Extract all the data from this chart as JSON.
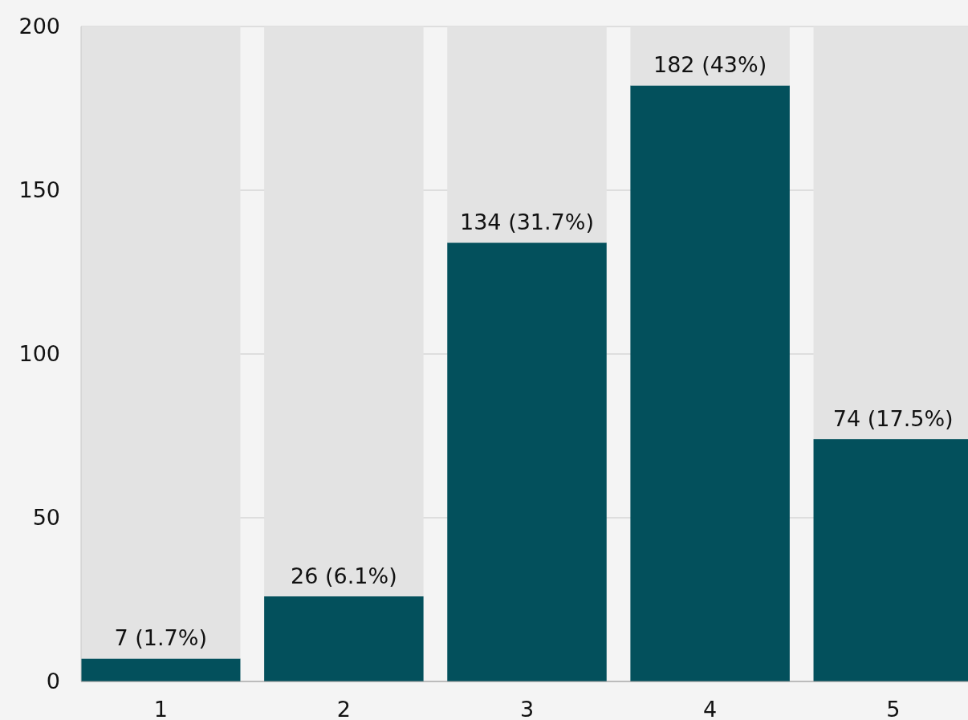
{
  "chart_data": {
    "type": "bar",
    "categories": [
      "1",
      "2",
      "3",
      "4",
      "5"
    ],
    "stacked": true,
    "series": [
      {
        "color": "#03505c",
        "values": [
          7,
          26,
          134,
          182,
          74
        ],
        "value_labels": [
          "7 (1.7%)",
          "26 (6.1%)",
          "134 (31.7%)",
          "182 (43%)",
          "74 (17.5%)"
        ]
      },
      {
        "color": "#e3e3e3",
        "values": [
          193,
          174,
          66,
          18,
          126
        ]
      }
    ],
    "ylim": [
      0,
      200
    ],
    "yticks": [
      0,
      50,
      100,
      150,
      200
    ],
    "grid": "y"
  }
}
